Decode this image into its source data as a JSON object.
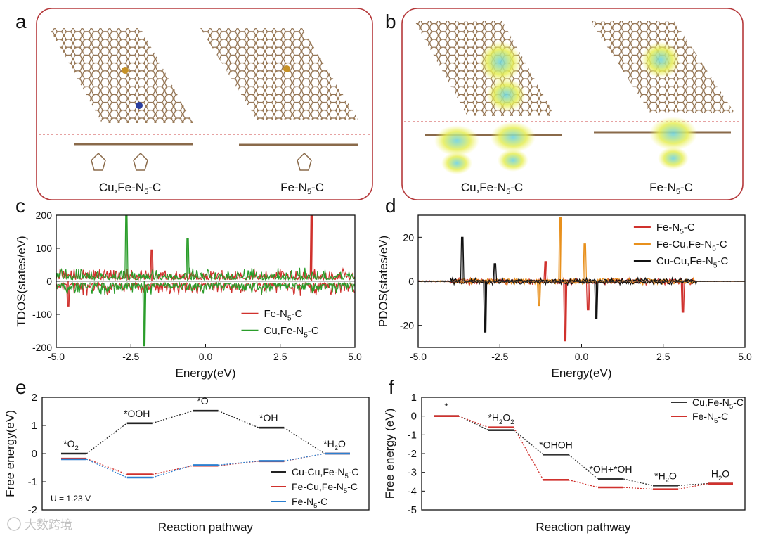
{
  "panels": {
    "a": {
      "letter": "a",
      "labels": [
        "Cu,Fe-N",
        "Fe-N"
      ],
      "subscript": "5",
      "suffix": "-C"
    },
    "b": {
      "letter": "b",
      "labels": [
        "Cu,Fe-N",
        "Fe-N"
      ],
      "subscript": "5",
      "suffix": "-C"
    }
  },
  "chart_data": [
    {
      "panel": "c",
      "type": "line",
      "ylabel": "TDOS(states/eV)",
      "xlabel": "Energy(eV)",
      "xlim": [
        -5.0,
        5.0
      ],
      "ylim": [
        -200,
        200
      ],
      "xticks": [
        "-5.0",
        "-2.5",
        "0.0",
        "2.5",
        "5.0"
      ],
      "yticks": [
        "200",
        "100",
        "0",
        "-100",
        "-200"
      ],
      "legend": [
        {
          "name": "Fe-N5-C",
          "base": "Fe-N",
          "sub": "5",
          "tail": "-C",
          "color": "#d0312d"
        },
        {
          "name": "Cu,Fe-N5-C",
          "base": "Cu,Fe-N",
          "sub": "5",
          "tail": "-C",
          "color": "#2a9d2a"
        }
      ],
      "peaks": [
        {
          "series": "Cu,Fe-N5-C",
          "x": -2.65,
          "y": 200
        },
        {
          "series": "Cu,Fe-N5-C",
          "x": -2.05,
          "y": -195
        },
        {
          "series": "Cu,Fe-N5-C",
          "x": -0.6,
          "y": 130
        },
        {
          "series": "Fe-N5-C",
          "x": 3.55,
          "y": 200
        },
        {
          "series": "Fe-N5-C",
          "x": -1.8,
          "y": 95
        },
        {
          "series": "Fe-N5-C",
          "x": -4.6,
          "y": -75
        }
      ]
    },
    {
      "panel": "d",
      "type": "line",
      "ylabel": "PDOS(states/eV)",
      "xlabel": "Energy(eV)",
      "xlim": [
        -5.0,
        5.0
      ],
      "ylim": [
        -30,
        30
      ],
      "xticks": [
        "-5.0",
        "-2.5",
        "0.0",
        "2.5",
        "5.0"
      ],
      "yticks": [
        "20",
        "0",
        "-20"
      ],
      "legend": [
        {
          "name": "Fe-N5-C",
          "base": "Fe-N",
          "sub": "5",
          "tail": "-C",
          "color": "#d0312d"
        },
        {
          "name": "Fe-Cu,Fe-N5-C",
          "base": "Fe-Cu,Fe-N",
          "sub": "5",
          "tail": "-C",
          "color": "#e8901c"
        },
        {
          "name": "Cu-Cu,Fe-N5-C",
          "base": "Cu-Cu,Fe-N",
          "sub": "5",
          "tail": "-C",
          "color": "#111111"
        }
      ],
      "peaks": [
        {
          "series": "Cu-Cu,Fe-N5-C",
          "x": -3.65,
          "y": 20
        },
        {
          "series": "Cu-Cu,Fe-N5-C",
          "x": -2.95,
          "y": -23
        },
        {
          "series": "Cu-Cu,Fe-N5-C",
          "x": -2.65,
          "y": 8
        },
        {
          "series": "Cu-Cu,Fe-N5-C",
          "x": 0.45,
          "y": -17
        },
        {
          "series": "Fe-Cu,Fe-N5-C",
          "x": -0.65,
          "y": 29
        },
        {
          "series": "Fe-Cu,Fe-N5-C",
          "x": 0.1,
          "y": 17
        },
        {
          "series": "Fe-Cu,Fe-N5-C",
          "x": -1.3,
          "y": -11
        },
        {
          "series": "Fe-N5-C",
          "x": -0.5,
          "y": -27
        },
        {
          "series": "Fe-N5-C",
          "x": 0.2,
          "y": -13
        },
        {
          "series": "Fe-N5-C",
          "x": -1.1,
          "y": 9
        },
        {
          "series": "Fe-N5-C",
          "x": 3.1,
          "y": -14
        }
      ]
    },
    {
      "panel": "e",
      "type": "line",
      "ylabel": "Free energy(eV)",
      "xlabel": "Reaction pathway",
      "ylim": [
        -2,
        2
      ],
      "yticks": [
        "2",
        "1",
        "0",
        "-1",
        "-2"
      ],
      "annotation": "U = 1.23 V",
      "steps": [
        {
          "label": "*O",
          "sub": "2"
        },
        {
          "label": "*OOH",
          "sub": ""
        },
        {
          "label": "*O",
          "sub": ""
        },
        {
          "label": "*OH",
          "sub": ""
        },
        {
          "label": "*H",
          "sub": "2",
          "tail": "O"
        }
      ],
      "series": [
        {
          "name": "Cu-Cu,Fe-N5-C",
          "base": "Cu-Cu,Fe-N",
          "sub": "5",
          "tail": "-C",
          "color": "#222222",
          "values": [
            0.0,
            1.08,
            1.52,
            0.92,
            0.0
          ]
        },
        {
          "name": "Fe-Cu,Fe-N5-C",
          "base": "Fe-Cu,Fe-N",
          "sub": "5",
          "tail": "-C",
          "color": "#d0312d",
          "values": [
            -0.18,
            -0.74,
            -0.43,
            -0.27,
            0.0
          ]
        },
        {
          "name": "Fe-N5-C",
          "base": "Fe-N",
          "sub": "5",
          "tail": "-C",
          "color": "#2a7fd0",
          "values": [
            -0.2,
            -0.85,
            -0.41,
            -0.26,
            0.0
          ]
        }
      ]
    },
    {
      "panel": "f",
      "type": "line",
      "ylabel": "Free energy (eV)",
      "xlabel": "Reaction pathway",
      "ylim": [
        -5,
        1
      ],
      "yticks": [
        "1",
        "0",
        "-1",
        "-2",
        "-3",
        "-4",
        "-5"
      ],
      "steps": [
        {
          "label": "*",
          "sub": ""
        },
        {
          "label": "*H",
          "sub": "2",
          "tail": "O",
          "sub2": "2"
        },
        {
          "label": "*OHOH",
          "sub": ""
        },
        {
          "label": "*OH+*OH",
          "sub": ""
        },
        {
          "label": "*H",
          "sub": "2",
          "tail": "O"
        },
        {
          "label": "H",
          "sub": "2",
          "tail": "O"
        }
      ],
      "series": [
        {
          "name": "Cu,Fe-N5-C",
          "base": "Cu,Fe-N",
          "sub": "5",
          "tail": "-C",
          "color": "#333333",
          "values": [
            0.0,
            -0.75,
            -2.05,
            -3.35,
            -3.7,
            -3.6
          ]
        },
        {
          "name": "Fe-N5-C",
          "base": "Fe-N",
          "sub": "5",
          "tail": "-C",
          "color": "#d0312d",
          "values": [
            0.0,
            -0.6,
            -3.4,
            -3.8,
            -3.9,
            -3.6
          ]
        }
      ]
    }
  ],
  "watermark": "大数跨境"
}
